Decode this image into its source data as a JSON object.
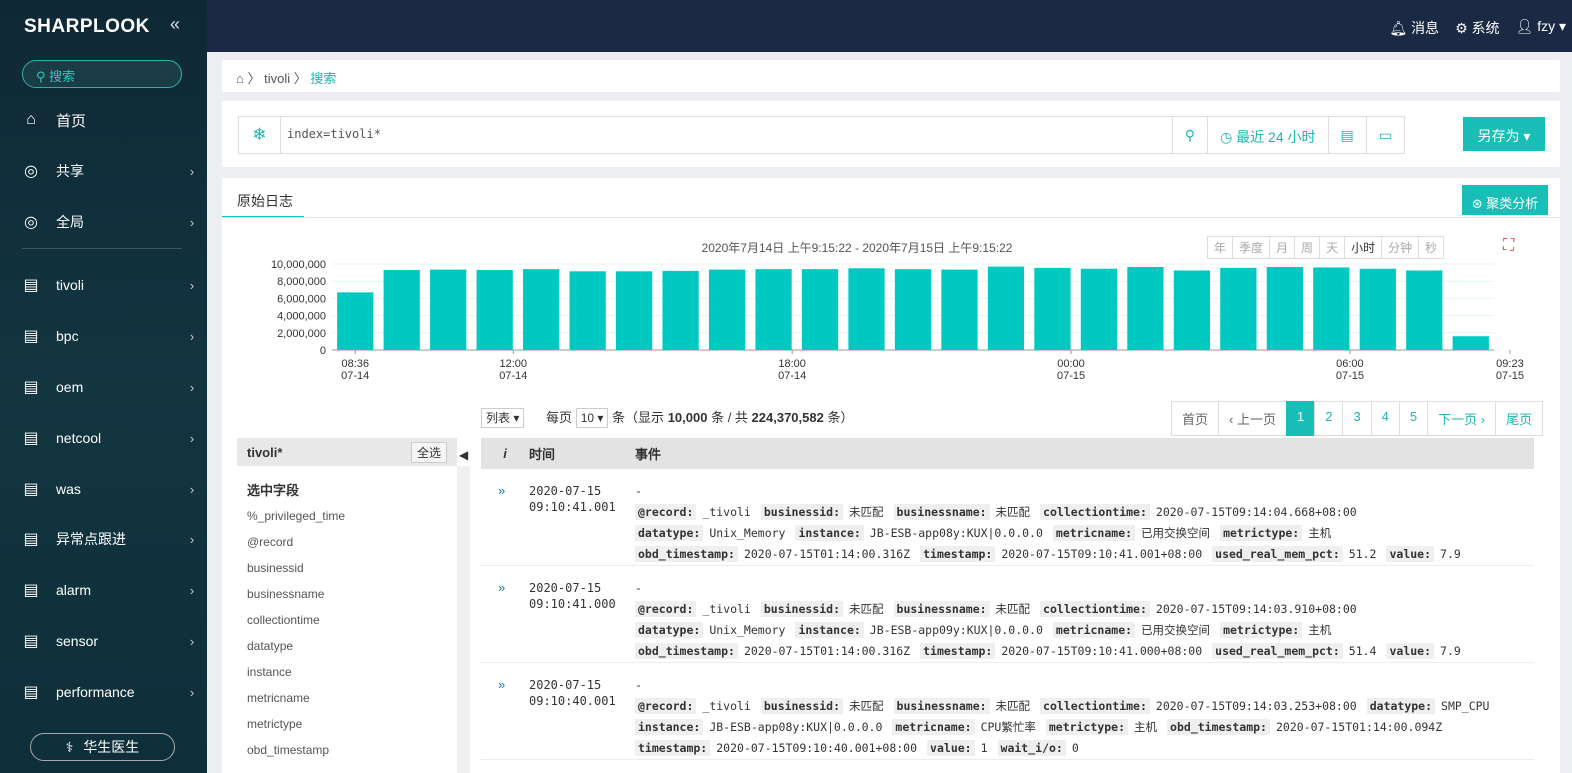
{
  "sidebar": {
    "logo": "SHARPLOOK",
    "search_label": "搜索",
    "items": [
      {
        "label": "首页",
        "icon": "home-icon"
      },
      {
        "label": "共享",
        "icon": "globe-icon"
      },
      {
        "label": "全局",
        "icon": "globe-icon"
      },
      {
        "label": "tivoli",
        "icon": "document-icon"
      },
      {
        "label": "bpc",
        "icon": "document-icon"
      },
      {
        "label": "oem",
        "icon": "document-icon"
      },
      {
        "label": "netcool",
        "icon": "document-icon"
      },
      {
        "label": "was",
        "icon": "document-icon"
      },
      {
        "label": "异常点跟进",
        "icon": "document-icon"
      },
      {
        "label": "alarm",
        "icon": "document-icon"
      },
      {
        "label": "sensor",
        "icon": "document-icon"
      },
      {
        "label": "performance",
        "icon": "document-icon"
      }
    ],
    "doctor_label": "华生医生"
  },
  "topbar": {
    "messages": "消息",
    "system": "系统",
    "user": "fzy"
  },
  "breadcrumb": {
    "item1": "tivoli",
    "item2": "搜索"
  },
  "search": {
    "query": "index=tivoli*",
    "time_range": "最近 24 小时",
    "save_as": "另存为"
  },
  "panel": {
    "tab": "原始日志",
    "cluster_button": "聚类分析",
    "range": "2020年7月14日 上午9:15:22 - 2020年7月15日 上午9:15:22",
    "granularity": [
      "年",
      "季度",
      "月",
      "周",
      "天",
      "小时",
      "分钟",
      "秒"
    ],
    "granularity_selected": "小时"
  },
  "chart_data": {
    "type": "bar",
    "title": "",
    "ylim": [
      0,
      10000000
    ],
    "yticks": [
      "10,000,000",
      "8,000,000",
      "6,000,000",
      "4,000,000",
      "2,000,000",
      "0"
    ],
    "xticks": [
      {
        "label": "08:36",
        "sub": "07-14",
        "pos": 0
      },
      {
        "label": "12:00",
        "sub": "07-14",
        "pos": 3.4
      },
      {
        "label": "18:00",
        "sub": "07-14",
        "pos": 9.4
      },
      {
        "label": "00:00",
        "sub": "07-15",
        "pos": 15.4
      },
      {
        "label": "06:00",
        "sub": "07-15",
        "pos": 21.4
      },
      {
        "label": "09:23",
        "sub": "07-15",
        "pos": 24.8
      }
    ],
    "values": [
      6700000,
      9300000,
      9350000,
      9300000,
      9400000,
      9150000,
      9150000,
      9200000,
      9350000,
      9400000,
      9400000,
      9500000,
      9400000,
      9350000,
      9700000,
      9550000,
      9450000,
      9650000,
      9250000,
      9550000,
      9650000,
      9600000,
      9450000,
      9250000,
      1600000
    ],
    "color": "#00c9c2"
  },
  "list": {
    "view": "列表",
    "per_page_label": "每页",
    "per_page": "10",
    "unit": "条",
    "summary_prefix": "（显示",
    "shown": "10,000",
    "summary_mid": "条 / 共",
    "total": "224,370,582",
    "summary_suffix": "条）"
  },
  "pager": {
    "first": "首页",
    "prev": "‹ 上一页",
    "pages": [
      "1",
      "2",
      "3",
      "4",
      "5"
    ],
    "next": "下一页 ›",
    "last": "尾页"
  },
  "fields": {
    "index": "tivoli*",
    "select_all": "全选",
    "selected_title": "选中字段",
    "items": [
      "%_privileged_time",
      "@record",
      "businessid",
      "businessname",
      "collectiontime",
      "datatype",
      "instance",
      "metricname",
      "metrictype",
      "obd_timestamp"
    ]
  },
  "table": {
    "col_i": "i",
    "col_time": "时间",
    "col_event": "事件",
    "rows": [
      {
        "date": "2020-07-15",
        "time": "09:10:41.001",
        "lines": [
          [
            {
              "k": "-",
              "v": ""
            }
          ],
          [
            {
              "k": "@record:",
              "v": "_tivoli"
            },
            {
              "k": "businessid:",
              "v": "未匹配"
            },
            {
              "k": "businessname:",
              "v": "未匹配"
            },
            {
              "k": "collectiontime:",
              "v": "2020-07-15T09:14:04.668+08:00"
            }
          ],
          [
            {
              "k": "datatype:",
              "v": "Unix_Memory"
            },
            {
              "k": "instance:",
              "v": "JB-ESB-app08y:KUX|0.0.0.0"
            },
            {
              "k": "metricname:",
              "v": "已用交换空间"
            },
            {
              "k": "metrictype:",
              "v": "主机"
            }
          ],
          [
            {
              "k": "obd_timestamp:",
              "v": "2020-07-15T01:14:00.316Z"
            },
            {
              "k": "timestamp:",
              "v": "2020-07-15T09:10:41.001+08:00"
            },
            {
              "k": "used_real_mem_pct:",
              "v": "51.2"
            },
            {
              "k": "value:",
              "v": "7.9"
            }
          ]
        ]
      },
      {
        "date": "2020-07-15",
        "time": "09:10:41.000",
        "lines": [
          [
            {
              "k": "-",
              "v": ""
            }
          ],
          [
            {
              "k": "@record:",
              "v": "_tivoli"
            },
            {
              "k": "businessid:",
              "v": "未匹配"
            },
            {
              "k": "businessname:",
              "v": "未匹配"
            },
            {
              "k": "collectiontime:",
              "v": "2020-07-15T09:14:03.910+08:00"
            }
          ],
          [
            {
              "k": "datatype:",
              "v": "Unix_Memory"
            },
            {
              "k": "instance:",
              "v": "JB-ESB-app09y:KUX|0.0.0.0"
            },
            {
              "k": "metricname:",
              "v": "已用交换空间"
            },
            {
              "k": "metrictype:",
              "v": "主机"
            }
          ],
          [
            {
              "k": "obd_timestamp:",
              "v": "2020-07-15T01:14:00.316Z"
            },
            {
              "k": "timestamp:",
              "v": "2020-07-15T09:10:41.000+08:00"
            },
            {
              "k": "used_real_mem_pct:",
              "v": "51.4"
            },
            {
              "k": "value:",
              "v": "7.9"
            }
          ]
        ]
      },
      {
        "date": "2020-07-15",
        "time": "09:10:40.001",
        "lines": [
          [
            {
              "k": "-",
              "v": ""
            }
          ],
          [
            {
              "k": "@record:",
              "v": "_tivoli"
            },
            {
              "k": "businessid:",
              "v": "未匹配"
            },
            {
              "k": "businessname:",
              "v": "未匹配"
            },
            {
              "k": "collectiontime:",
              "v": "2020-07-15T09:14:03.253+08:00"
            },
            {
              "k": "datatype:",
              "v": "SMP_CPU"
            }
          ],
          [
            {
              "k": "instance:",
              "v": "JB-ESB-app08y:KUX|0.0.0.0"
            },
            {
              "k": "metricname:",
              "v": "CPU繁忙率"
            },
            {
              "k": "metrictype:",
              "v": "主机"
            },
            {
              "k": "obd_timestamp:",
              "v": "2020-07-15T01:14:00.094Z"
            }
          ],
          [
            {
              "k": "timestamp:",
              "v": "2020-07-15T09:10:40.001+08:00"
            },
            {
              "k": "value:",
              "v": "1"
            },
            {
              "k": "wait_i/o:",
              "v": "0"
            }
          ]
        ]
      }
    ]
  }
}
